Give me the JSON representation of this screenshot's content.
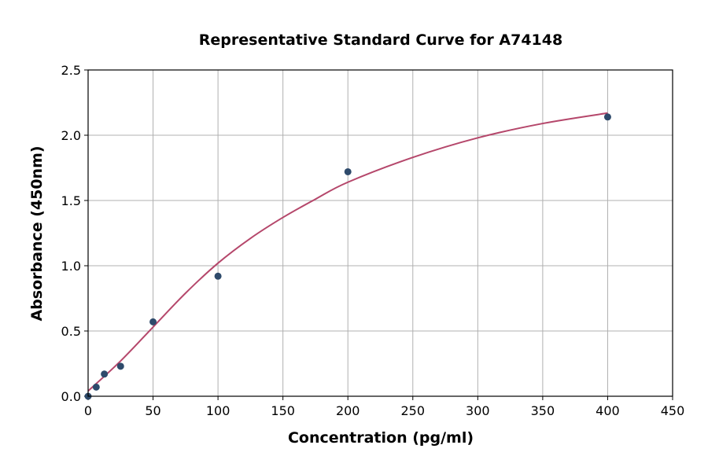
{
  "chart_data": {
    "type": "scatter",
    "title": "Representative Standard Curve for A74148",
    "xlabel": "Concentration (pg/ml)",
    "ylabel": "Absorbance (450nm)",
    "xlim": [
      0,
      450
    ],
    "ylim": [
      0,
      2.5
    ],
    "xticks": [
      0,
      50,
      100,
      150,
      200,
      250,
      300,
      350,
      400,
      450
    ],
    "yticks": [
      "0.0",
      "0.5",
      "1.0",
      "1.5",
      "2.0",
      "2.5"
    ],
    "grid": true,
    "points": {
      "x": [
        0,
        6.25,
        12.5,
        25,
        50,
        100,
        200,
        400
      ],
      "y": [
        0.0,
        0.07,
        0.17,
        0.23,
        0.57,
        0.92,
        1.72,
        2.14
      ]
    },
    "fit_curve": {
      "x": [
        0,
        25,
        50,
        75,
        100,
        125,
        150,
        175,
        200,
        250,
        300,
        350,
        400
      ],
      "y": [
        0.04,
        0.27,
        0.53,
        0.79,
        1.02,
        1.21,
        1.37,
        1.51,
        1.64,
        1.83,
        1.98,
        2.09,
        2.17
      ]
    },
    "colors": {
      "points": "#2e4a6b",
      "curve": "#b5476b",
      "grid": "#b0b0b0"
    }
  }
}
